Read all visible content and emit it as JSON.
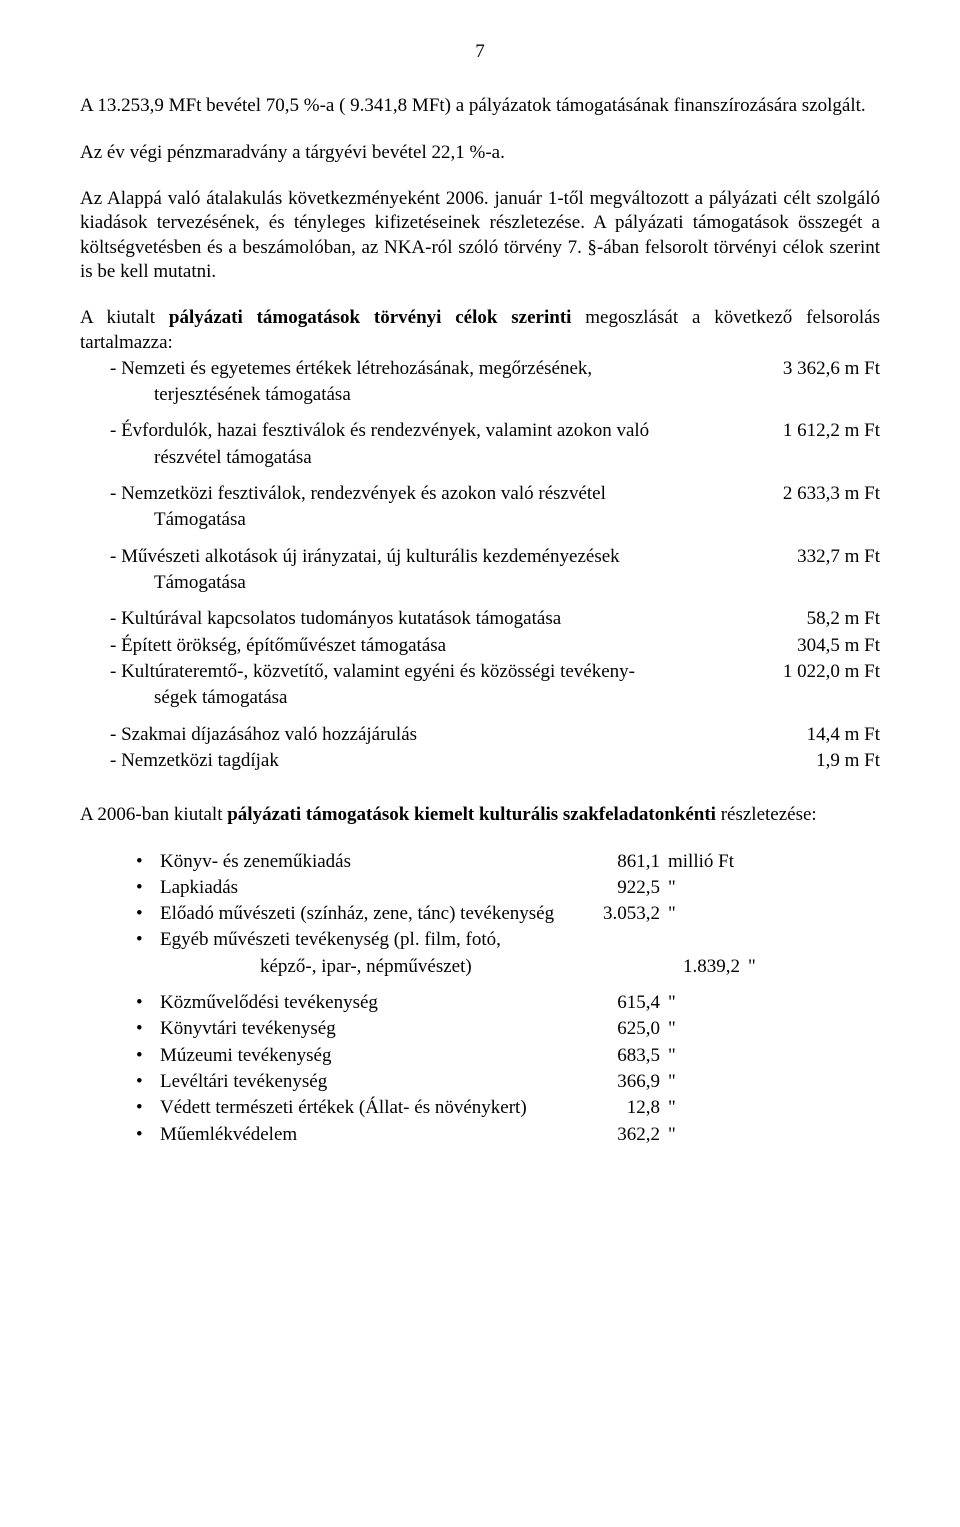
{
  "page_number": "7",
  "para1": "A 13.253,9 MFt bevétel 70,5 %-a ( 9.341,8 MFt) a pályázatok támogatásának finanszírozására szolgált.",
  "para2": "Az év végi pénzmaradvány a tárgyévi bevétel 22,1 %-a.",
  "para3": "Az Alappá való átalakulás következményeként 2006. január 1-től megváltozott a pályázati célt szolgáló kiadások tervezésének, és tényleges kifizetéseinek részletezése. A pályázati támogatások összegét a költségvetésben és a beszámolóban, az NKA-ról szóló törvény 7. §-ában felsorolt törvényi célok szerint is be kell mutatni.",
  "para4_pre": "A kiutalt ",
  "para4_bold": "pályázati támogatások törvényi célok szerinti",
  "para4_post": " megoszlását a következő felsorolás tartalmazza:",
  "goals": [
    {
      "label": "Nemzeti és egyetemes értékek létrehozásának, megőrzésének,",
      "value": "3 362,6 m Ft",
      "cont": "terjesztésének támogatása"
    },
    {
      "label": "Évfordulók, hazai fesztiválok és rendezvények, valamint azokon való",
      "value": "1 612,2 m Ft",
      "cont": "részvétel támogatása"
    },
    {
      "label": "Nemzetközi fesztiválok, rendezvények és azokon való részvétel",
      "value": "2 633,3 m Ft",
      "cont": "Támogatása"
    },
    {
      "label": "Művészeti alkotások új irányzatai, új kulturális kezdeményezések",
      "value": "332,7 m Ft",
      "cont": "Támogatása"
    },
    {
      "label": "Kultúrával kapcsolatos tudományos kutatások támogatása",
      "value": "58,2 m Ft"
    },
    {
      "label": "Épített örökség, építőművészet támogatása",
      "value": "304,5 m Ft"
    },
    {
      "label": "Kultúrateremtő-, közvetítő, valamint egyéni és közösségi tevékeny-",
      "value": "1 022,0 m Ft",
      "cont": "ségek támogatása"
    },
    {
      "label": "Szakmai díjazásához való hozzájárulás",
      "value": "14,4 m Ft"
    },
    {
      "label": "Nemzetközi tagdíjak",
      "value": "1,9 m Ft"
    }
  ],
  "para5_pre": "A 2006-ban kiutalt ",
  "para5_bold": "pályázati támogatások kiemelt kulturális szakfeladatonkénti",
  "para5_post": " részletezése:",
  "tasks": [
    {
      "label": "Könyv- és zeneműkiadás",
      "value": "861,1",
      "unit": "millió Ft"
    },
    {
      "label": "Lapkiadás",
      "value": "922,5",
      "unit": "\""
    },
    {
      "label": "Előadó művészeti (színház, zene, tánc) tevékenység",
      "value": "3.053,2",
      "unit": "\""
    },
    {
      "label": "Egyéb művészeti tevékenység (pl. film, fotó,",
      "value": "",
      "unit": ""
    }
  ],
  "task_sub": {
    "label": "képző-, ipar-, népművészet)",
    "value": "1.839,2",
    "unit": "\""
  },
  "tasks2": [
    {
      "label": "Közművelődési tevékenység",
      "value": "615,4",
      "unit": "\""
    },
    {
      "label": "Könyvtári tevékenység",
      "value": "625,0",
      "unit": "\""
    },
    {
      "label": "Múzeumi tevékenység",
      "value": "683,5",
      "unit": "\""
    },
    {
      "label": "Levéltári tevékenység",
      "value": "366,9",
      "unit": "\""
    },
    {
      "label": "Védett természeti értékek (Állat- és növénykert)",
      "value": "12,8",
      "unit": "\""
    },
    {
      "label": "Műemlékvédelem",
      "value": "362,2",
      "unit": "\""
    }
  ]
}
